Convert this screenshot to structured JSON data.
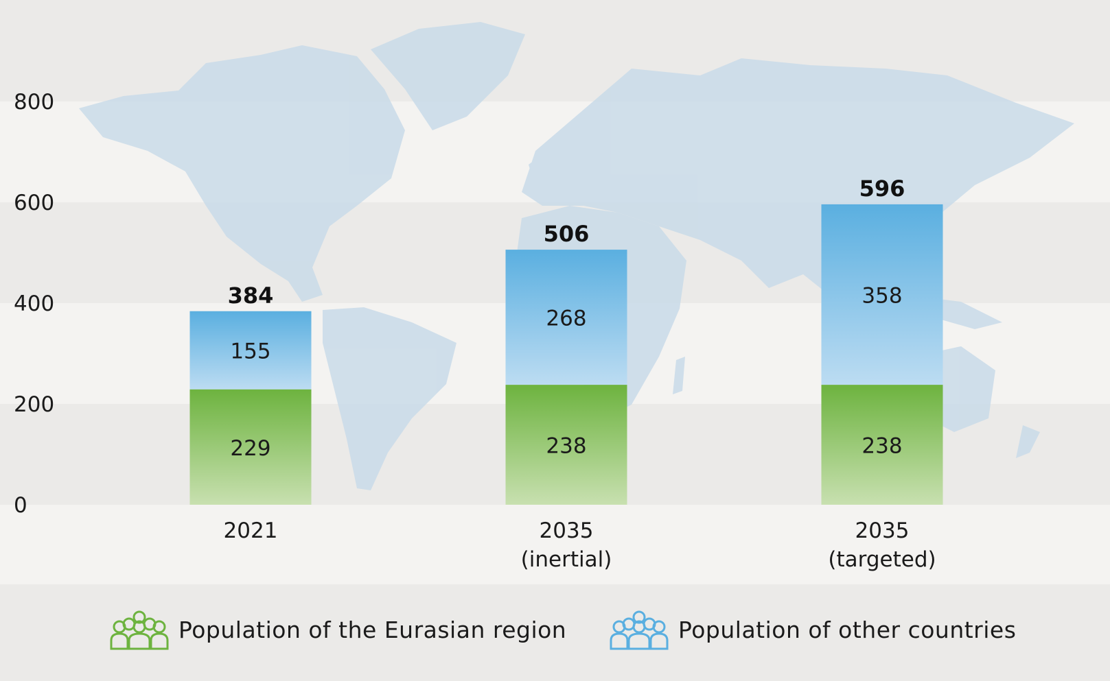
{
  "chart_data": {
    "type": "bar",
    "stacked": true,
    "categories": [
      "2021",
      "2035\n(inertial)",
      "2035\n(targeted)"
    ],
    "series": [
      {
        "name": "Population of the Eurasian region",
        "values": [
          229,
          238,
          238
        ],
        "color": "#6db33f"
      },
      {
        "name": "Population of other countries",
        "values": [
          155,
          268,
          358
        ],
        "color": "#5aafe0"
      }
    ],
    "totals": [
      384,
      506,
      596
    ],
    "ylim": [
      0,
      800
    ],
    "yticks": [
      0,
      200,
      400,
      600,
      800
    ],
    "xlabel": "",
    "ylabel": "",
    "grid": "alternating horizontal bands",
    "legend_position": "bottom",
    "background": "world map"
  },
  "legend": {
    "eurasian_label": "Population of the Eurasian region",
    "eurasian_icon": "people-group-icon",
    "other_label": "Population of other countries",
    "other_icon": "people-group-icon"
  },
  "colors": {
    "green_top": "#6db33f",
    "green_bottom": "#c8e0b0",
    "blue_top": "#5aafe0",
    "blue_bottom": "#bcdcf2",
    "band_dark": "#ebeae8",
    "band_light": "#f4f3f1",
    "map": "#c9dbe9"
  }
}
